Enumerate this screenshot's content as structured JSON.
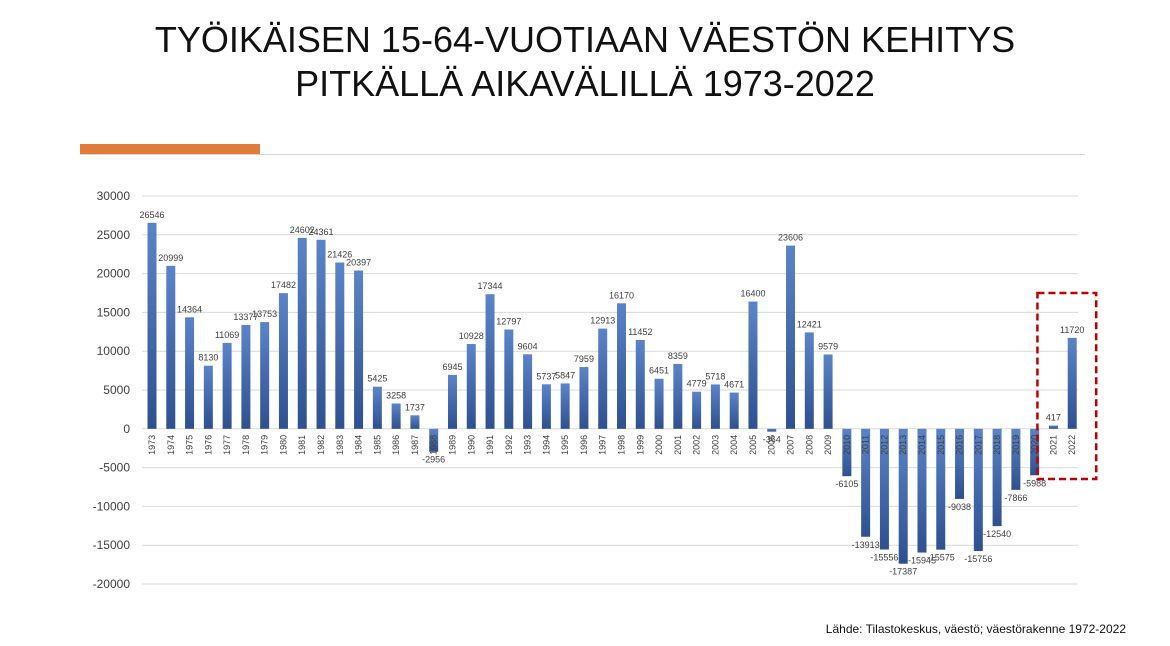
{
  "title": {
    "line1": "TYÖIKÄISEN 15-64-VUOTIAAN VÄESTÖN KEHITYS",
    "line2": "PITKÄLLÄ AIKAVÄLILLÄ 1973-2022"
  },
  "source": "Lähde: Tilastokeskus, väestö; väestörakenne 1972-2022",
  "colors": {
    "accent": "#E07B39",
    "bar_top": "#5B84C8",
    "bar_bottom": "#2E508F",
    "highlight_box": "#C00000",
    "gridline": "#D9D9D9"
  },
  "chart_data": {
    "type": "bar",
    "title": "",
    "xlabel": "",
    "ylabel": "",
    "ylim": [
      -20000,
      30000
    ],
    "yticks": [
      30000,
      25000,
      20000,
      15000,
      10000,
      5000,
      0,
      -5000,
      -10000,
      -15000,
      -20000
    ],
    "grid": true,
    "legend": "none",
    "highlighted_categories": [
      "2021",
      "2022"
    ],
    "categories": [
      "1973",
      "1974",
      "1975",
      "1976",
      "1977",
      "1978",
      "1979",
      "1980",
      "1981",
      "1982",
      "1983",
      "1984",
      "1985",
      "1986",
      "1987",
      "1988",
      "1989",
      "1990",
      "1991",
      "1992",
      "1993",
      "1994",
      "1995",
      "1996",
      "1997",
      "1998",
      "1999",
      "2000",
      "2001",
      "2002",
      "2003",
      "2004",
      "2005",
      "2006",
      "2007",
      "2008",
      "2009",
      "2010",
      "2011",
      "2012",
      "2013",
      "2014",
      "2015",
      "2016",
      "2017",
      "2018",
      "2019",
      "2020",
      "2021",
      "2022"
    ],
    "values": [
      26546,
      20999,
      14364,
      8130,
      11069,
      13377,
      13753,
      17482,
      24602,
      24361,
      21426,
      20397,
      5425,
      3258,
      1737,
      -2956,
      6945,
      10928,
      17344,
      12797,
      9604,
      5737,
      5847,
      7959,
      12913,
      16170,
      11452,
      6451,
      8359,
      4779,
      5718,
      4671,
      16400,
      -364,
      23606,
      12421,
      9579,
      -6105,
      -13913,
      -15556,
      -17387,
      -15945,
      -15575,
      -9038,
      -15756,
      -12540,
      -7866,
      -5988,
      417,
      11720
    ]
  }
}
